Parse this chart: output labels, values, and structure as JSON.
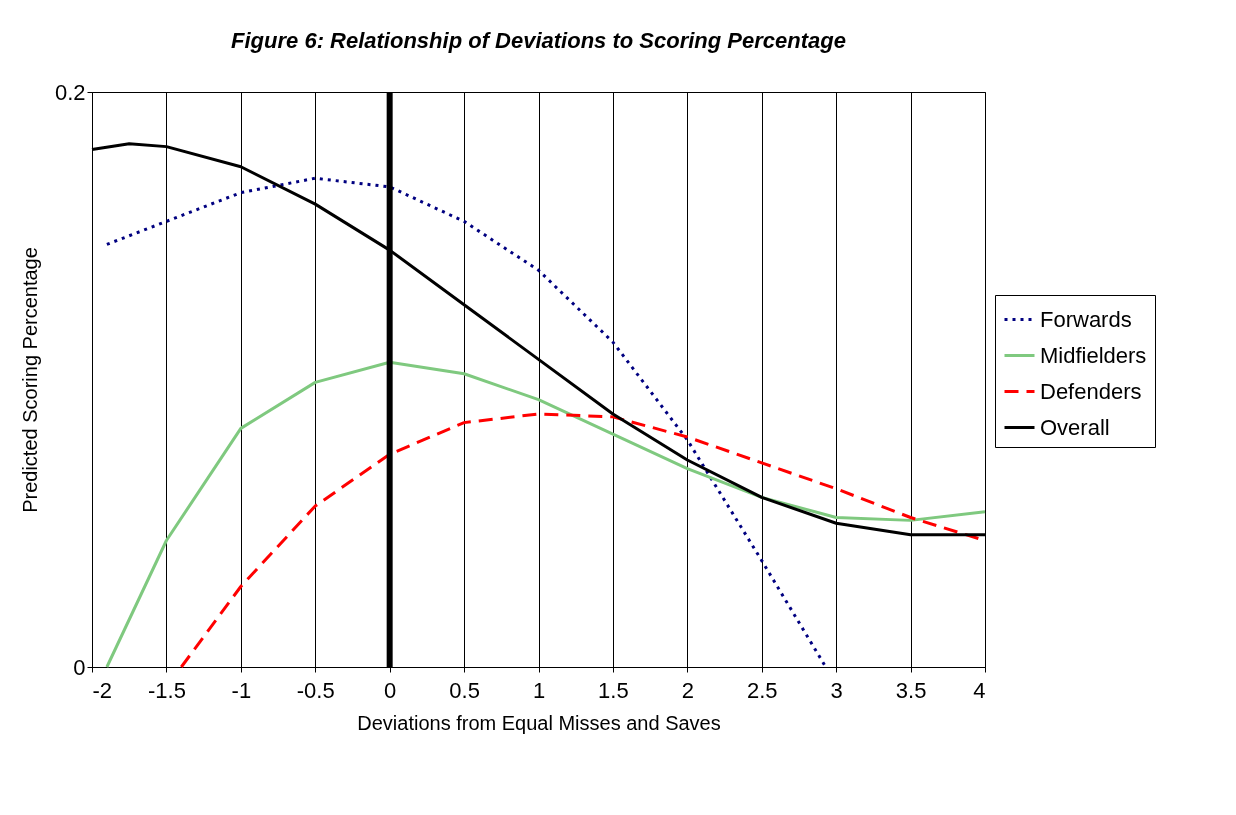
{
  "chart_data": {
    "type": "line",
    "title": "Figure 6: Relationship of Deviations to Scoring Percentage",
    "xlabel": "Deviations from Equal Misses and Saves",
    "ylabel": "Predicted Scoring Percentage",
    "xlim": [
      -2,
      4
    ],
    "xticks": [
      -2,
      -1.5,
      -1,
      -0.5,
      0,
      0.5,
      1,
      1.5,
      2,
      2.5,
      3,
      3.5,
      4
    ],
    "ylim": [
      0,
      0.2
    ],
    "yticks": [
      0,
      0.2
    ],
    "grid": "x",
    "legend": "right",
    "ref_lines": [
      {
        "axis": "x",
        "value": 0,
        "color": "#000000"
      }
    ],
    "series": [
      {
        "name": "Forwards",
        "color": "#000080",
        "line_style": "dotted",
        "x": [
          -1.9,
          -1.5,
          -1,
          -0.5,
          0,
          0.5,
          1,
          1.5,
          2,
          2.5,
          2.93
        ],
        "values": [
          0.147,
          0.155,
          0.165,
          0.17,
          0.167,
          0.155,
          0.138,
          0.113,
          0.079,
          0.037,
          0
        ]
      },
      {
        "name": "Midfielders",
        "color": "#7fc97f",
        "line_style": "solid",
        "x": [
          -1.9,
          -1.5,
          -1,
          -0.5,
          0,
          0.5,
          1,
          1.5,
          2,
          2.5,
          3,
          3.5,
          4
        ],
        "values": [
          0,
          0.044,
          0.083,
          0.099,
          0.106,
          0.102,
          0.093,
          0.081,
          0.069,
          0.059,
          0.052,
          0.051,
          0.054
        ]
      },
      {
        "name": "Defenders",
        "color": "#ff0000",
        "line_style": "dashed",
        "x": [
          -1.4,
          -1,
          -0.5,
          0,
          0.5,
          1,
          1.5,
          2,
          2.5,
          3,
          3.5,
          4
        ],
        "values": [
          0,
          0.028,
          0.056,
          0.074,
          0.085,
          0.088,
          0.087,
          0.08,
          0.071,
          0.062,
          0.052,
          0.044
        ]
      },
      {
        "name": "Overall",
        "color": "#000000",
        "line_style": "solid",
        "x": [
          -2,
          -1.75,
          -1.5,
          -1,
          -0.5,
          0,
          0.5,
          1,
          1.5,
          2,
          2.5,
          3,
          3.5,
          3.75,
          4
        ],
        "values": [
          0.18,
          0.182,
          0.181,
          0.174,
          0.161,
          0.145,
          0.126,
          0.107,
          0.088,
          0.072,
          0.059,
          0.05,
          0.046,
          0.046,
          0.046
        ]
      }
    ]
  }
}
